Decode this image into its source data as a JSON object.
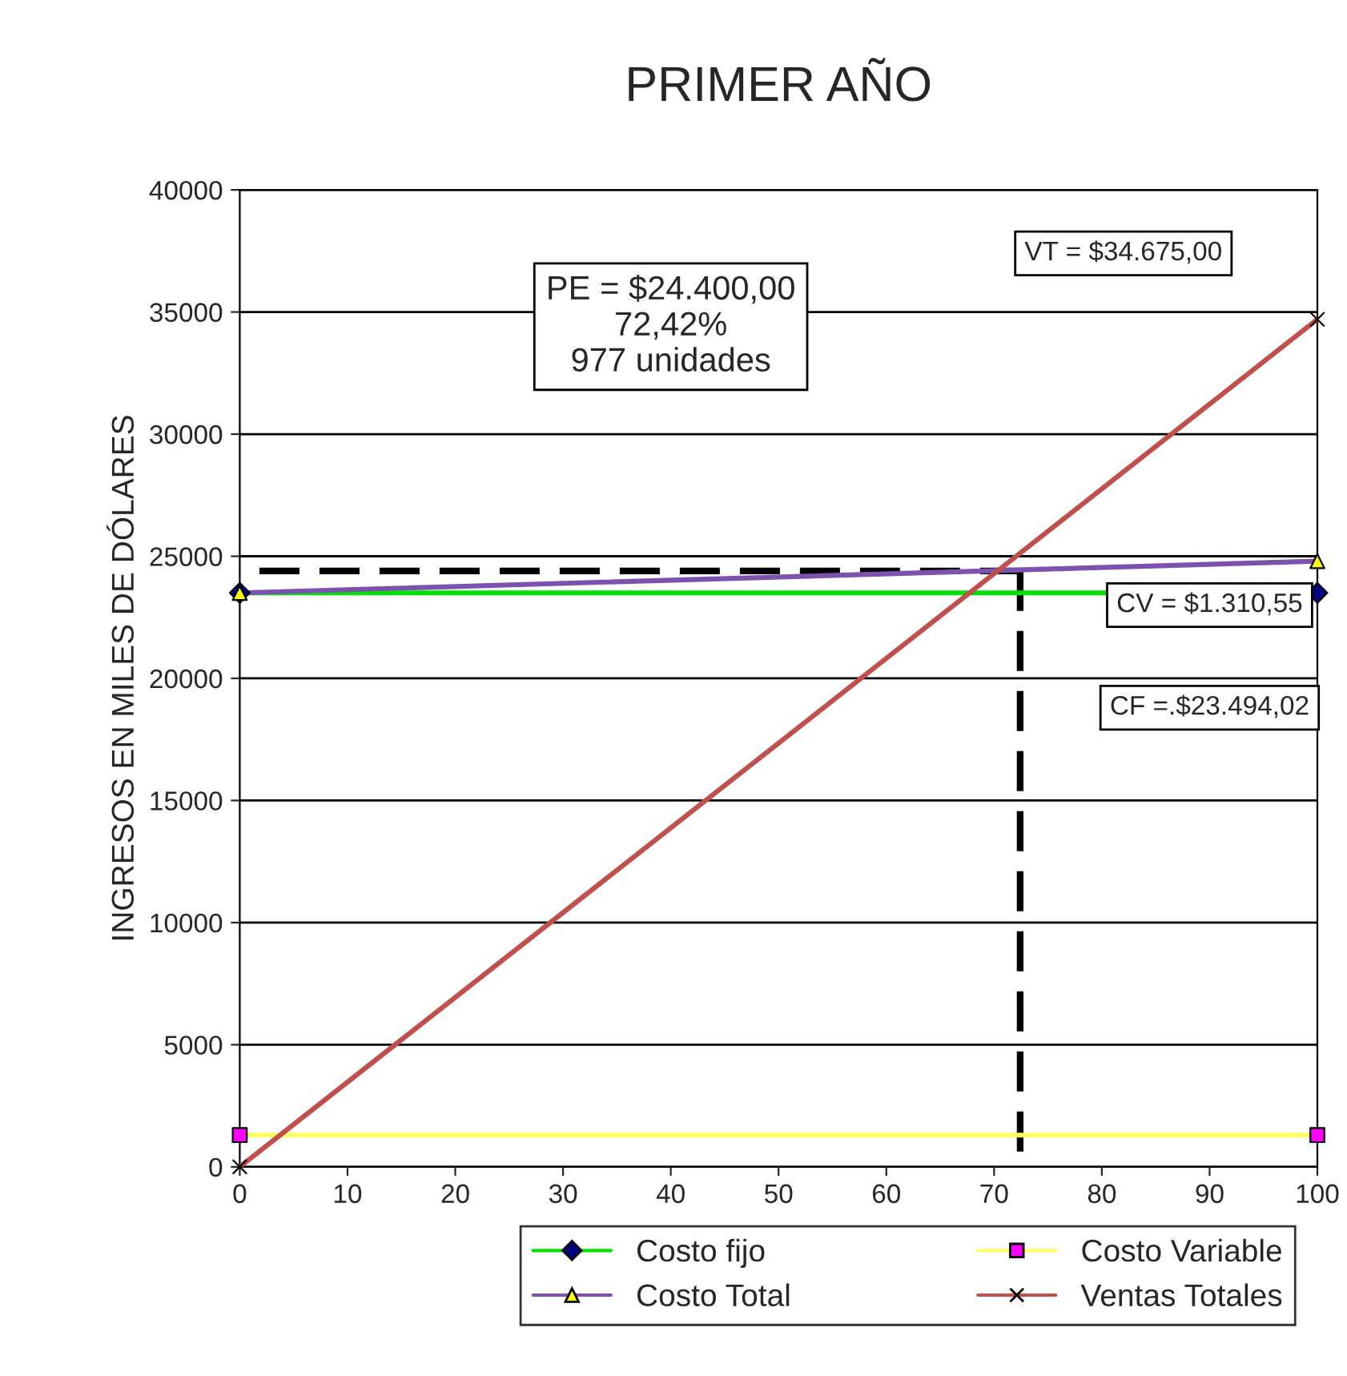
{
  "chart_data": {
    "type": "line",
    "title": "PRIMER AÑO",
    "ylabel": "INGRESOS EN MILES DE DÓLARES",
    "x": [
      0,
      100
    ],
    "xlim": [
      0,
      100
    ],
    "xticks": [
      0,
      10,
      20,
      30,
      40,
      50,
      60,
      70,
      80,
      90,
      100
    ],
    "ylim": [
      0,
      40000
    ],
    "yticks": [
      0,
      5000,
      10000,
      15000,
      20000,
      25000,
      30000,
      35000,
      40000
    ],
    "series": [
      {
        "name": "Costo fijo",
        "color": "#00e000",
        "colors": [
          "#000080",
          "#000080"
        ],
        "marker": "diamond",
        "values": [
          23500,
          23500
        ]
      },
      {
        "name": "Costo Variable",
        "color": "#ffff66",
        "colors": [
          "#ff00ff",
          "#ff00ff"
        ],
        "marker": "square",
        "values": [
          1300,
          1300
        ]
      },
      {
        "name": "Costo Total",
        "color": "#7b52ae",
        "colors": [
          "#ffff00",
          "#ffff00"
        ],
        "marker": "triangle",
        "values": [
          23500,
          24800
        ]
      },
      {
        "name": "Ventas Totales",
        "color": "#c0504d",
        "colors": [
          "#000000",
          "#000000"
        ],
        "marker": "cross",
        "values": [
          0,
          34700
        ]
      }
    ],
    "ref_lines": [
      {
        "axis": "x",
        "value": 72.42,
        "color": "#000000",
        "line_style": "dashed"
      },
      {
        "axis": "y",
        "value": 24400,
        "color": "#000000",
        "line_style": "dashed"
      }
    ],
    "annotations": [
      "PE = $24.400,00\n72,42%\n977 unidades",
      "VT = $34.675,00",
      "CV = $1.310,55",
      "CF =.$23.494,02"
    ],
    "grid": "y",
    "legend": "bottom"
  }
}
